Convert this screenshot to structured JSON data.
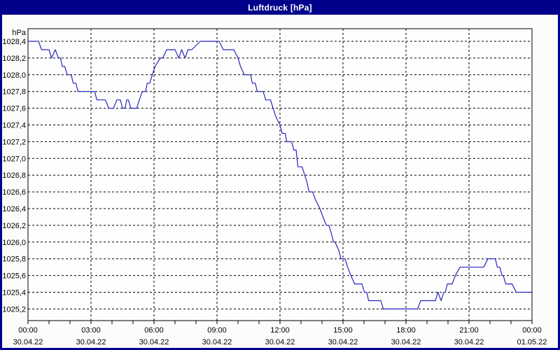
{
  "title": "Luftdruck [hPa]",
  "colors": {
    "frame": "#00008b",
    "panel": "#fcfcfc",
    "plot_bg": "#fefefe",
    "grid": "#000000",
    "axis": "#000000",
    "line": "#2626c0",
    "title_text": "#ffffff",
    "label_text": "#000000"
  },
  "chart_data": {
    "type": "line",
    "title": "Luftdruck [hPa]",
    "ylabel": "hPa",
    "xlabel": "",
    "grid": "dashed",
    "legend": "none",
    "x_unit": "hours",
    "xlim": [
      0,
      24
    ],
    "ylim": [
      1025.05,
      1028.55
    ],
    "y_ticks": [
      1028.4,
      1028.2,
      1028.0,
      1027.8,
      1027.6,
      1027.4,
      1027.2,
      1027.0,
      1026.8,
      1026.6,
      1026.4,
      1026.2,
      1026.0,
      1025.8,
      1025.6,
      1025.4,
      1025.2
    ],
    "y_tick_labels": [
      "1028,4",
      "1028,2",
      "1028,0",
      "1027,8",
      "1027,6",
      "1027,4",
      "1027,2",
      "1027,0",
      "1026,8",
      "1026,6",
      "1026,4",
      "1026,2",
      "1026,0",
      "1025,8",
      "1025,6",
      "1025,4",
      "1025,2"
    ],
    "x_major_ticks": [
      {
        "hour": 0,
        "time": "00:00",
        "date": "30.04.22"
      },
      {
        "hour": 3,
        "time": "03:00",
        "date": "30.04.22"
      },
      {
        "hour": 6,
        "time": "06:00",
        "date": "30.04.22"
      },
      {
        "hour": 9,
        "time": "09:00",
        "date": "30.04.22"
      },
      {
        "hour": 12,
        "time": "12:00",
        "date": "30.04.22"
      },
      {
        "hour": 15,
        "time": "15:00",
        "date": "30.04.22"
      },
      {
        "hour": 18,
        "time": "18:00",
        "date": "30.04.22"
      },
      {
        "hour": 21,
        "time": "21:00",
        "date": "30.04.22"
      },
      {
        "hour": 24,
        "time": "00:00",
        "date": "01.05.22"
      }
    ],
    "x_minor_tick_every_hours": 1,
    "series": [
      {
        "name": "Luftdruck",
        "color": "#2626c0",
        "points": [
          [
            0.0,
            1028.4
          ],
          [
            0.5,
            1028.4
          ],
          [
            0.65,
            1028.3
          ],
          [
            1.0,
            1028.3
          ],
          [
            1.12,
            1028.2
          ],
          [
            1.3,
            1028.3
          ],
          [
            1.45,
            1028.2
          ],
          [
            1.55,
            1028.2
          ],
          [
            1.63,
            1028.1
          ],
          [
            1.75,
            1028.1
          ],
          [
            1.87,
            1028.0
          ],
          [
            2.06,
            1028.0
          ],
          [
            2.15,
            1027.9
          ],
          [
            2.28,
            1027.9
          ],
          [
            2.38,
            1027.8
          ],
          [
            3.17,
            1027.8
          ],
          [
            3.28,
            1027.7
          ],
          [
            3.68,
            1027.7
          ],
          [
            3.85,
            1027.6
          ],
          [
            4.07,
            1027.6
          ],
          [
            4.23,
            1027.7
          ],
          [
            4.4,
            1027.7
          ],
          [
            4.5,
            1027.6
          ],
          [
            4.62,
            1027.6
          ],
          [
            4.7,
            1027.7
          ],
          [
            4.78,
            1027.7
          ],
          [
            4.9,
            1027.6
          ],
          [
            5.18,
            1027.6
          ],
          [
            5.3,
            1027.7
          ],
          [
            5.45,
            1027.8
          ],
          [
            5.6,
            1027.8
          ],
          [
            5.68,
            1027.9
          ],
          [
            5.8,
            1027.9
          ],
          [
            5.92,
            1028.0
          ],
          [
            6.05,
            1028.1
          ],
          [
            6.3,
            1028.2
          ],
          [
            6.42,
            1028.2
          ],
          [
            6.6,
            1028.3
          ],
          [
            7.0,
            1028.3
          ],
          [
            7.18,
            1028.2
          ],
          [
            7.32,
            1028.3
          ],
          [
            7.48,
            1028.2
          ],
          [
            7.62,
            1028.3
          ],
          [
            7.8,
            1028.3
          ],
          [
            8.2,
            1028.4
          ],
          [
            9.1,
            1028.4
          ],
          [
            9.3,
            1028.3
          ],
          [
            9.8,
            1028.3
          ],
          [
            10.0,
            1028.2
          ],
          [
            10.12,
            1028.1
          ],
          [
            10.3,
            1028.0
          ],
          [
            10.6,
            1028.0
          ],
          [
            10.68,
            1027.9
          ],
          [
            10.82,
            1027.9
          ],
          [
            10.92,
            1027.8
          ],
          [
            11.2,
            1027.8
          ],
          [
            11.32,
            1027.7
          ],
          [
            11.55,
            1027.7
          ],
          [
            11.67,
            1027.6
          ],
          [
            11.8,
            1027.5
          ],
          [
            12.0,
            1027.4
          ],
          [
            12.1,
            1027.3
          ],
          [
            12.25,
            1027.3
          ],
          [
            12.32,
            1027.2
          ],
          [
            12.55,
            1027.2
          ],
          [
            12.66,
            1027.1
          ],
          [
            12.77,
            1027.1
          ],
          [
            12.85,
            1026.9
          ],
          [
            13.05,
            1026.9
          ],
          [
            13.18,
            1026.8
          ],
          [
            13.3,
            1026.7
          ],
          [
            13.38,
            1026.6
          ],
          [
            13.55,
            1026.6
          ],
          [
            13.7,
            1026.5
          ],
          [
            13.9,
            1026.4
          ],
          [
            14.05,
            1026.3
          ],
          [
            14.2,
            1026.2
          ],
          [
            14.33,
            1026.2
          ],
          [
            14.45,
            1026.1
          ],
          [
            14.55,
            1026.0
          ],
          [
            14.62,
            1026.0
          ],
          [
            14.8,
            1025.9
          ],
          [
            14.9,
            1025.8
          ],
          [
            15.1,
            1025.8
          ],
          [
            15.22,
            1025.7
          ],
          [
            15.38,
            1025.6
          ],
          [
            15.55,
            1025.5
          ],
          [
            15.9,
            1025.5
          ],
          [
            16.02,
            1025.4
          ],
          [
            16.13,
            1025.4
          ],
          [
            16.22,
            1025.3
          ],
          [
            16.8,
            1025.3
          ],
          [
            16.92,
            1025.2
          ],
          [
            18.55,
            1025.2
          ],
          [
            18.7,
            1025.3
          ],
          [
            19.4,
            1025.3
          ],
          [
            19.52,
            1025.4
          ],
          [
            19.67,
            1025.3
          ],
          [
            19.8,
            1025.4
          ],
          [
            19.87,
            1025.4
          ],
          [
            19.97,
            1025.5
          ],
          [
            20.2,
            1025.5
          ],
          [
            20.35,
            1025.6
          ],
          [
            20.57,
            1025.7
          ],
          [
            21.7,
            1025.7
          ],
          [
            21.9,
            1025.8
          ],
          [
            22.25,
            1025.8
          ],
          [
            22.35,
            1025.7
          ],
          [
            22.47,
            1025.7
          ],
          [
            22.57,
            1025.6
          ],
          [
            22.63,
            1025.6
          ],
          [
            22.75,
            1025.5
          ],
          [
            23.05,
            1025.5
          ],
          [
            23.25,
            1025.4
          ],
          [
            24.0,
            1025.4
          ]
        ]
      }
    ]
  }
}
